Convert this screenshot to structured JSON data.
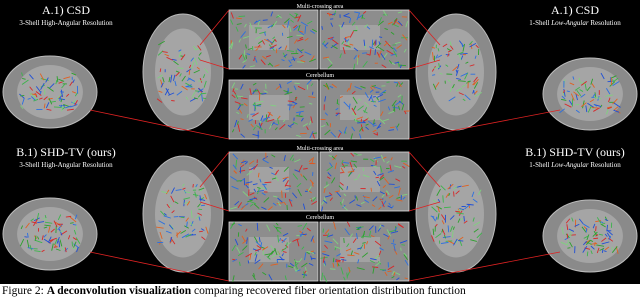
{
  "figure": {
    "panels": [
      {
        "left_title": "A.1) CSD",
        "left_subtitle": "3-Shell High-Angular Resolution",
        "zoom_top_label": "Multi-crossing area",
        "zoom_bottom_label": "Cerebellum",
        "right_title": "A.1) CSD",
        "right_subtitle": [
          "1-Shell ",
          "Low-Angular",
          " Resolution"
        ]
      },
      {
        "left_title": "B.1) SHD-TV (ours)",
        "left_subtitle": "3-Shell High-Angular Resolution",
        "zoom_top_label": "Multi-crossing area",
        "zoom_bottom_label": "Cerebellum",
        "right_title": "B.1) SHD-TV (ours)",
        "right_subtitle": [
          "1-Shell ",
          "Low-Angular",
          " Resolution"
        ]
      }
    ]
  },
  "caption": {
    "label": "Figure 2: ",
    "bold": "A deconvolution visualization",
    "text": " comparing recovered fiber orientation distribution function"
  }
}
